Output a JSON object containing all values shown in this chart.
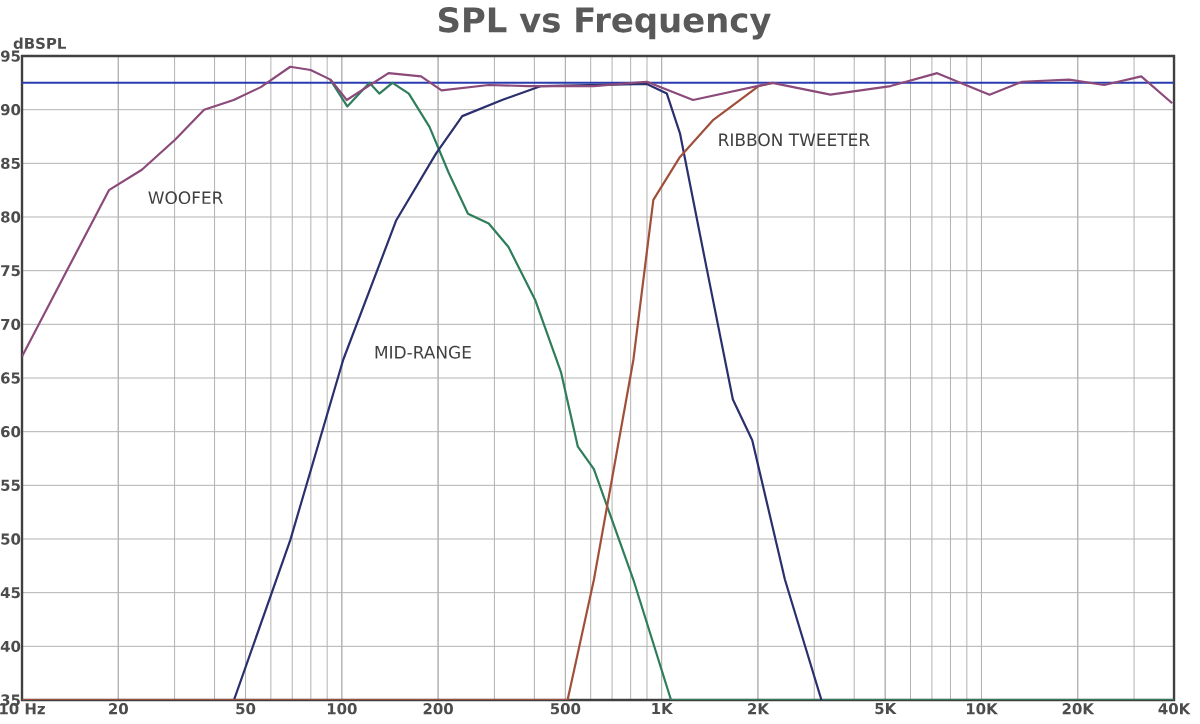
{
  "chart_data": {
    "type": "line",
    "title": "SPL vs Frequency",
    "ylabel": "dBSPL",
    "log": "x",
    "grid": true,
    "marker": "none",
    "line_style": "solid",
    "xlim": [
      10,
      40000
    ],
    "ylim": [
      35,
      95
    ],
    "xticks": [
      {
        "value": 10,
        "label": "10  Hz"
      },
      20,
      50,
      100,
      200,
      500,
      {
        "value": 1000,
        "label": "1K"
      },
      {
        "value": 2000,
        "label": "2K"
      },
      {
        "value": 5000,
        "label": "5K"
      },
      {
        "value": 10000,
        "label": "10K"
      },
      {
        "value": 20000,
        "label": "20K"
      },
      {
        "value": 40000,
        "label": "40K"
      }
    ],
    "yticks": [
      35,
      40,
      45,
      50,
      55,
      60,
      65,
      70,
      75,
      80,
      85,
      90,
      95
    ],
    "series": [
      {
        "color": "#2e7d5b",
        "x": [
          92,
          104,
          122,
          131,
          144,
          162,
          188,
          216,
          248,
          288,
          332,
          402,
          485,
          547,
          614,
          816,
          1070,
          40000
        ],
        "values": [
          92.8,
          90.3,
          92.5,
          91.5,
          92.5,
          91.5,
          88.4,
          84.1,
          80.3,
          79.4,
          77.2,
          72.3,
          65.5,
          58.6,
          56.5,
          46.2,
          35,
          35
        ]
      },
      {
        "color": "#2a2f6e",
        "x": [
          10,
          46,
          69,
          101,
          148,
          197,
          238,
          317,
          420,
          899,
          1038,
          1141,
          1379,
          1670,
          1920,
          2430,
          3160
        ],
        "values": [
          35,
          35,
          49.9,
          66.7,
          79.7,
          85.9,
          89.4,
          90.9,
          92.2,
          92.4,
          91.5,
          87.8,
          75.4,
          63,
          59.2,
          46.2,
          35
        ]
      },
      {
        "color": "#a0503a",
        "x": [
          10,
          508,
          614,
          816,
          942,
          1141,
          1444,
          2010,
          2220
        ],
        "values": [
          35,
          35,
          46.2,
          66.7,
          81.6,
          85.6,
          89,
          92.2,
          92.5
        ]
      },
      {
        "color": "#8b4a7a",
        "x": [
          10,
          13.7,
          18.7,
          23.7,
          30.1,
          37.1,
          45.9,
          55.8,
          69,
          79.9,
          92.2,
          103.6,
          140,
          177,
          205,
          288,
          383,
          508,
          614,
          899,
          1254,
          2220,
          3370,
          5200,
          7270,
          10600,
          13400,
          18800,
          24200,
          31600,
          39500
        ],
        "values": [
          67,
          74.8,
          82.5,
          84.4,
          87.2,
          90,
          90.9,
          92.1,
          94,
          93.7,
          92.8,
          90.9,
          93.4,
          93.1,
          91.8,
          92.3,
          92.2,
          92.2,
          92.2,
          92.6,
          90.9,
          92.5,
          91.4,
          92.2,
          93.4,
          91.4,
          92.6,
          92.8,
          92.3,
          93.1,
          90.6
        ]
      }
    ],
    "ref_lines": [
      {
        "axis": "y",
        "value": 92.5,
        "color": "#2a3bb0",
        "line_style": "solid"
      }
    ],
    "annotations": [
      "WOOFER",
      "MID-RANGE",
      "RIBBON TWEETER"
    ]
  }
}
